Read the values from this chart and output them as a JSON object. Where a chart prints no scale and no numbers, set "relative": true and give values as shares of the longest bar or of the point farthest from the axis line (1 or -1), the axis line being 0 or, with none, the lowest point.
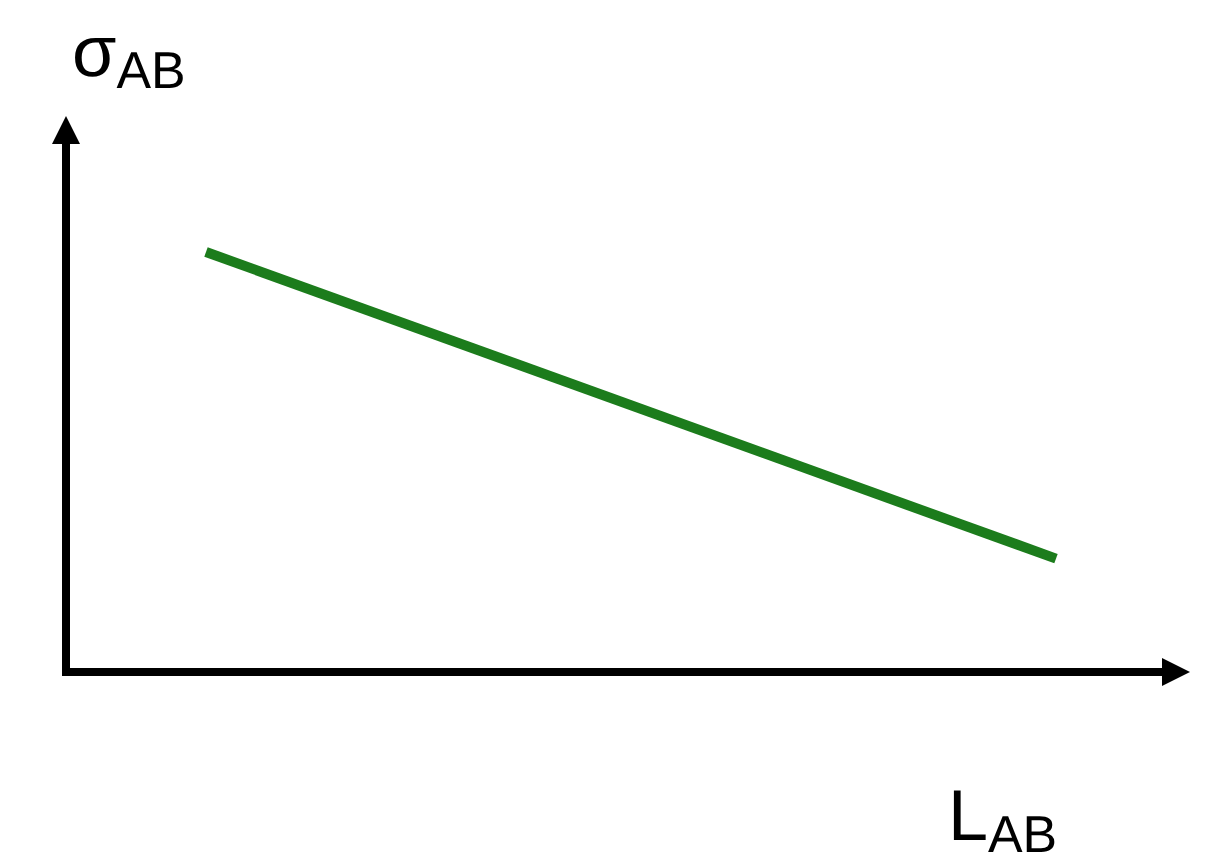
{
  "chart_data": {
    "type": "line",
    "relative": true,
    "xlabel": "L$_{AB}$",
    "ylabel": "σ$_{AB}$",
    "categories": [
      null,
      null
    ],
    "series": [
      {
        "color": "#1c7c1c",
        "values": [
          1,
          0.27
        ]
      }
    ],
    "marker": "none",
    "line_style": "solid"
  }
}
